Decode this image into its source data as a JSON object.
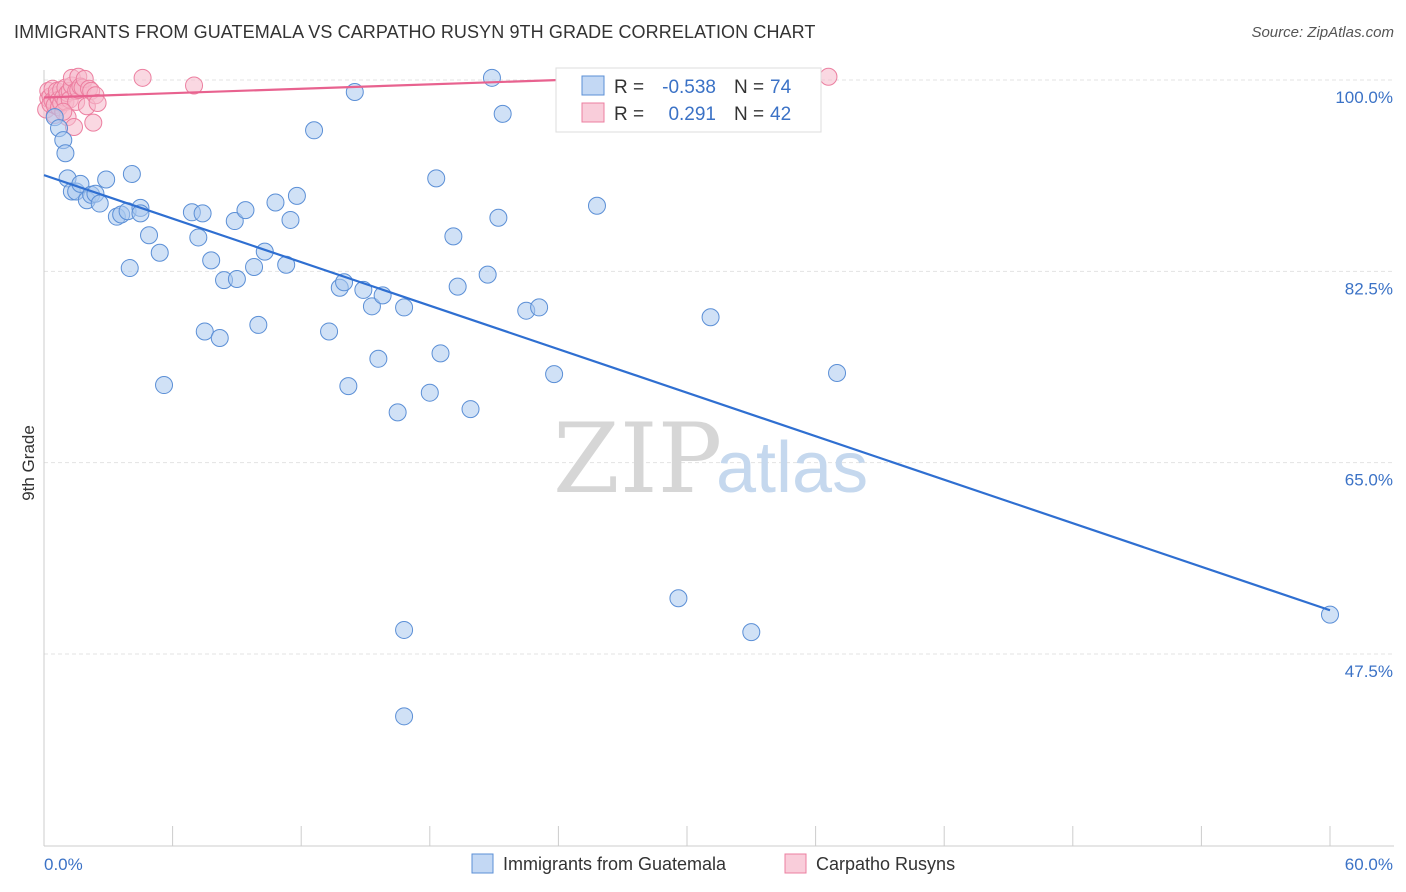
{
  "title": "IMMIGRANTS FROM GUATEMALA VS CARPATHO RUSYN 9TH GRADE CORRELATION CHART",
  "source": "Source: ZipAtlas.com",
  "watermark": {
    "zip": "ZIP",
    "atlas": "atlas"
  },
  "colors": {
    "blue_fill": "#a9c8ef",
    "blue_stroke": "#5b8fd6",
    "blue_line": "#2f6fd1",
    "pink_fill": "#f6b8cb",
    "pink_stroke": "#ec7fa0",
    "pink_line": "#e8628f",
    "grid": "#e3e3e3",
    "tick_label": "#3b72c6"
  },
  "legend": {
    "rows": [
      {
        "r_label": "R = ",
        "r_value": "-0.538",
        "n_label": "N = ",
        "n_value": "74",
        "color": "blue"
      },
      {
        "r_label": "R = ",
        "r_value": " 0.291",
        "n_label": "N = ",
        "n_value": "42",
        "color": "pink"
      }
    ]
  },
  "chart_data": {
    "type": "scatter",
    "title": "IMMIGRANTS FROM GUATEMALA VS CARPATHO RUSYN 9TH GRADE CORRELATION CHART",
    "xlabel": "",
    "ylabel": "9th Grade",
    "xlim": [
      0,
      60
    ],
    "ylim": [
      30.5,
      101.5
    ],
    "x_tick_labels": [
      "0.0%",
      "60.0%"
    ],
    "y_ticks": [
      100.0,
      82.5,
      65.0,
      47.5
    ],
    "y_tick_labels": [
      "100.0%",
      "82.5%",
      "65.0%",
      "47.5%"
    ],
    "grid": true,
    "legend_position": "top-center",
    "series": [
      {
        "name": "Immigrants from Guatemala",
        "color": "blue",
        "trend": {
          "x0": 0,
          "y0": 91.3,
          "x1": 60,
          "y1": 51.5
        },
        "points": [
          [
            0.5,
            96.6
          ],
          [
            0.7,
            95.6
          ],
          [
            0.9,
            94.5
          ],
          [
            1.0,
            93.3
          ],
          [
            1.1,
            91.0
          ],
          [
            1.3,
            89.8
          ],
          [
            1.5,
            89.8
          ],
          [
            1.7,
            90.5
          ],
          [
            2.0,
            89.0
          ],
          [
            2.2,
            89.5
          ],
          [
            2.4,
            89.6
          ],
          [
            2.6,
            88.7
          ],
          [
            2.9,
            90.9
          ],
          [
            3.4,
            87.5
          ],
          [
            3.6,
            87.7
          ],
          [
            3.9,
            88.0
          ],
          [
            4.1,
            91.4
          ],
          [
            4.5,
            88.3
          ],
          [
            4.5,
            87.8
          ],
          [
            4.9,
            85.8
          ],
          [
            5.4,
            84.2
          ],
          [
            4.0,
            82.8
          ],
          [
            5.6,
            72.1
          ],
          [
            6.9,
            87.9
          ],
          [
            7.2,
            85.6
          ],
          [
            7.4,
            87.8
          ],
          [
            7.8,
            83.5
          ],
          [
            7.5,
            77.0
          ],
          [
            8.2,
            76.4
          ],
          [
            8.4,
            81.7
          ],
          [
            8.9,
            87.1
          ],
          [
            9.0,
            81.8
          ],
          [
            9.4,
            88.1
          ],
          [
            9.8,
            82.9
          ],
          [
            10.0,
            77.6
          ],
          [
            10.3,
            84.3
          ],
          [
            10.8,
            88.8
          ],
          [
            11.3,
            83.1
          ],
          [
            11.5,
            87.2
          ],
          [
            11.8,
            89.4
          ],
          [
            12.6,
            95.4
          ],
          [
            13.3,
            77.0
          ],
          [
            13.8,
            81.0
          ],
          [
            14.0,
            81.5
          ],
          [
            14.2,
            72.0
          ],
          [
            14.5,
            98.9
          ],
          [
            14.9,
            80.8
          ],
          [
            15.3,
            79.3
          ],
          [
            15.6,
            74.5
          ],
          [
            15.8,
            80.3
          ],
          [
            16.5,
            69.6
          ],
          [
            16.8,
            79.2
          ],
          [
            16.8,
            49.7
          ],
          [
            16.8,
            41.8
          ],
          [
            18.0,
            71.4
          ],
          [
            18.3,
            91.0
          ],
          [
            18.5,
            75.0
          ],
          [
            19.1,
            85.7
          ],
          [
            19.3,
            81.1
          ],
          [
            19.9,
            69.9
          ],
          [
            20.7,
            82.2
          ],
          [
            20.9,
            100.2
          ],
          [
            21.2,
            87.4
          ],
          [
            21.4,
            96.9
          ],
          [
            22.5,
            78.9
          ],
          [
            23.1,
            79.2
          ],
          [
            23.8,
            73.1
          ],
          [
            25.8,
            88.5
          ],
          [
            29.6,
            52.6
          ],
          [
            31.1,
            78.3
          ],
          [
            33.0,
            49.5
          ],
          [
            35.8,
            97.8
          ],
          [
            37.0,
            73.2
          ],
          [
            60.0,
            51.1
          ]
        ]
      },
      {
        "name": "Carpatho Rusyns",
        "color": "pink",
        "trend": {
          "x0": 0,
          "y0": 98.4,
          "x1": 33,
          "y1": 100.6
        },
        "points": [
          [
            0.1,
            97.3
          ],
          [
            0.2,
            98.3
          ],
          [
            0.2,
            99.0
          ],
          [
            0.3,
            98.5
          ],
          [
            0.3,
            97.8
          ],
          [
            0.4,
            99.2
          ],
          [
            0.4,
            98.1
          ],
          [
            0.5,
            96.8
          ],
          [
            0.5,
            97.7
          ],
          [
            0.6,
            98.6
          ],
          [
            0.6,
            99.0
          ],
          [
            0.7,
            98.2
          ],
          [
            0.7,
            97.5
          ],
          [
            0.8,
            99.1
          ],
          [
            0.8,
            97.9
          ],
          [
            0.9,
            98.4
          ],
          [
            1.0,
            99.3
          ],
          [
            1.0,
            98.0
          ],
          [
            1.1,
            96.6
          ],
          [
            1.1,
            98.8
          ],
          [
            1.2,
            99.0
          ],
          [
            1.2,
            98.2
          ],
          [
            1.3,
            99.5
          ],
          [
            1.3,
            100.2
          ],
          [
            1.4,
            95.7
          ],
          [
            1.5,
            99.0
          ],
          [
            1.5,
            98.0
          ],
          [
            1.6,
            100.3
          ],
          [
            1.6,
            99.1
          ],
          [
            1.7,
            99.4
          ],
          [
            1.8,
            99.3
          ],
          [
            1.9,
            100.1
          ],
          [
            2.0,
            97.6
          ],
          [
            2.1,
            99.2
          ],
          [
            2.2,
            99.0
          ],
          [
            2.3,
            96.1
          ],
          [
            2.4,
            98.6
          ],
          [
            2.5,
            97.9
          ],
          [
            4.6,
            100.2
          ],
          [
            7.0,
            99.5
          ],
          [
            0.9,
            97.1
          ],
          [
            36.6,
            100.3
          ]
        ]
      }
    ]
  },
  "bottom_legend": [
    {
      "label": "Immigrants from Guatemala",
      "color": "blue"
    },
    {
      "label": "Carpatho Rusyns",
      "color": "pink"
    }
  ]
}
